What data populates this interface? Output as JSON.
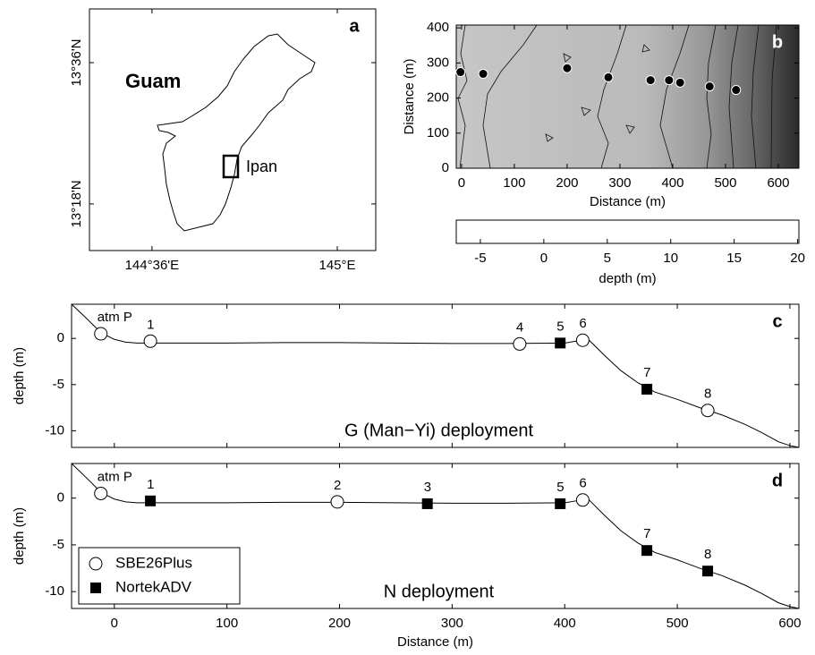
{
  "chart_data": [
    {
      "type": "map",
      "panel_label": "a",
      "xlim": [
        144.465,
        145.083
      ],
      "ylim": [
        13.201,
        13.714
      ],
      "xticks": [
        {
          "value": 144.6,
          "label": "144°36'E"
        },
        {
          "value": 145,
          "label": "145°E"
        }
      ],
      "yticks": [
        {
          "value": 13.3,
          "label": "13°18'N"
        },
        {
          "value": 13.6,
          "label": "13°36'N"
        }
      ],
      "annotations": [
        "Guam",
        "Ipan"
      ]
    },
    {
      "type": "scatter",
      "panel_label": "b",
      "xlabel": "Distance (m)",
      "ylabel": "Distance (m)",
      "xlim": [
        -10,
        639
      ],
      "ylim": [
        0,
        408
      ],
      "xticks": [
        0,
        100,
        200,
        300,
        400,
        500,
        600
      ],
      "yticks": [
        0,
        100,
        200,
        300,
        400
      ],
      "x": [
        -2,
        41,
        200,
        278,
        358,
        393,
        414,
        470,
        520
      ],
      "values": [
        274,
        269,
        285,
        259,
        251,
        251,
        244,
        233,
        223
      ],
      "color": "#000000"
    },
    {
      "type": "colorbar",
      "xlabel": "depth (m)",
      "xlim": [
        -6.9,
        20.1
      ],
      "xticks": [
        -5,
        0,
        5,
        10,
        15,
        20
      ]
    },
    {
      "type": "line",
      "panel_label": "c",
      "annotation": "G (Man−Yi) deployment",
      "ylabel": "depth (m)",
      "xlim": [
        -38,
        608
      ],
      "ylim": [
        -11.8,
        3.7
      ],
      "xticks": [
        0,
        100,
        200,
        300,
        400,
        500,
        600
      ],
      "xticklabels": false,
      "yticks": [
        -10,
        -5,
        0
      ],
      "profile": {
        "color": "#000000",
        "x": [
          -38,
          -25,
          -15,
          -10,
          0,
          10,
          20,
          50,
          100,
          150,
          200,
          250,
          300,
          350,
          400,
          410,
          416,
          420,
          425,
          435,
          450,
          465,
          480,
          500,
          520,
          540,
          560,
          575,
          590,
          600,
          608
        ],
        "values": [
          3.7,
          2.2,
          1.0,
          0.5,
          -0.1,
          -0.4,
          -0.5,
          -0.5,
          -0.5,
          -0.45,
          -0.45,
          -0.5,
          -0.55,
          -0.55,
          -0.5,
          -0.3,
          -0.1,
          0.0,
          -0.6,
          -1.8,
          -3.5,
          -4.8,
          -5.8,
          -6.6,
          -7.5,
          -8.3,
          -9.3,
          -10.2,
          -11.2,
          -11.6,
          -11.8
        ]
      },
      "series": [
        {
          "marker": "circle",
          "color": "#000000",
          "labels": [
            "atm P",
            "1",
            "4",
            "6",
            "8"
          ],
          "x": [
            -12,
            32,
            360,
            416,
            527
          ],
          "values": [
            0.5,
            -0.3,
            -0.6,
            -0.2,
            -7.8
          ]
        },
        {
          "marker": "square",
          "color": "#000000",
          "labels": [
            "5",
            "7"
          ],
          "x": [
            396,
            473
          ],
          "values": [
            -0.5,
            -5.5
          ]
        }
      ]
    },
    {
      "type": "line",
      "panel_label": "d",
      "annotation": "N deployment",
      "ylabel": "depth (m)",
      "xlabel": "Distance (m)",
      "xlim": [
        -38,
        608
      ],
      "ylim": [
        -11.8,
        3.7
      ],
      "xticks": [
        0,
        100,
        200,
        300,
        400,
        500,
        600
      ],
      "yticks": [
        -10,
        -5,
        0
      ],
      "legend": "lower left",
      "profile": {
        "color": "#000000",
        "x": [
          -38,
          -25,
          -15,
          -10,
          0,
          10,
          20,
          50,
          100,
          150,
          200,
          250,
          300,
          350,
          400,
          410,
          416,
          420,
          425,
          435,
          450,
          465,
          480,
          500,
          520,
          540,
          560,
          575,
          590,
          600,
          608
        ],
        "values": [
          3.7,
          2.2,
          1.0,
          0.5,
          -0.1,
          -0.4,
          -0.5,
          -0.5,
          -0.5,
          -0.45,
          -0.45,
          -0.5,
          -0.55,
          -0.55,
          -0.5,
          -0.3,
          -0.1,
          0.0,
          -0.6,
          -1.8,
          -3.5,
          -4.8,
          -5.8,
          -6.6,
          -7.5,
          -8.3,
          -9.3,
          -10.2,
          -11.2,
          -11.6,
          -11.8
        ]
      },
      "series": [
        {
          "name": "SBE26Plus",
          "marker": "circle",
          "color": "#000000",
          "labels": [
            "atm P",
            "2",
            "6"
          ],
          "x": [
            -12,
            198,
            416
          ],
          "values": [
            0.5,
            -0.4,
            -0.2
          ]
        },
        {
          "name": "NortekADV",
          "marker": "square",
          "color": "#000000",
          "labels": [
            "1",
            "3",
            "5",
            "7",
            "8"
          ],
          "x": [
            32,
            278,
            396,
            473,
            527
          ],
          "values": [
            -0.3,
            -0.6,
            -0.6,
            -5.6,
            -7.8
          ]
        }
      ]
    }
  ]
}
